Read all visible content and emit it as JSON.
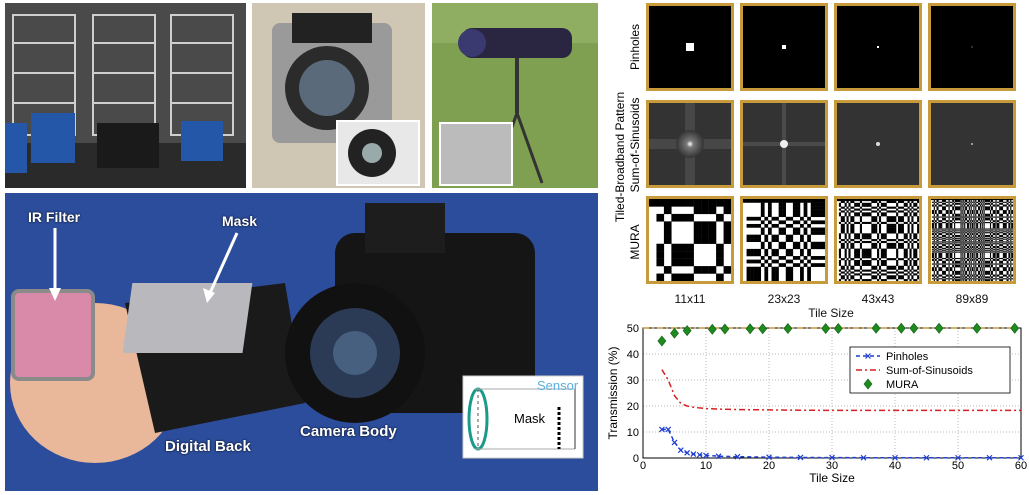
{
  "photos": {
    "annotations": {
      "ir_filter": "IR Filter",
      "mask": "Mask",
      "digital_back": "Digital Back",
      "camera_body": "Camera Body"
    },
    "inset": {
      "sensor": "Sensor",
      "mask": "Mask"
    }
  },
  "pattern_grid": {
    "group_label": "Tiled-Broadband Pattern",
    "rows": [
      "Pinholes",
      "Sum-of-Sinusoids",
      "MURA"
    ],
    "columns": [
      "11x11",
      "23x23",
      "43x43",
      "89x89"
    ],
    "xlabel": "Tile Size",
    "frame_color": "#c79a3c"
  },
  "chart_data": {
    "type": "line",
    "xlabel": "Tile Size",
    "ylabel": "Transmission (%)",
    "xlim": [
      0,
      60
    ],
    "ylim": [
      0,
      50
    ],
    "xticks": [
      0,
      10,
      20,
      30,
      40,
      50,
      60
    ],
    "yticks": [
      0,
      10,
      20,
      30,
      40,
      50
    ],
    "grid": true,
    "legend": "top-right",
    "reference_line": 50,
    "series": [
      {
        "name": "Pinholes",
        "color": "#1f3fd1",
        "style": "dashed-x",
        "x": [
          3,
          4,
          5,
          6,
          7,
          8,
          9,
          10,
          12,
          15,
          20,
          25,
          30,
          35,
          40,
          45,
          50,
          55,
          60
        ],
        "y": [
          11,
          11,
          6,
          3,
          2,
          1.5,
          1.2,
          1,
          0.7,
          0.5,
          0.3,
          0.2,
          0.15,
          0.1,
          0.1,
          0.1,
          0.1,
          0.1,
          0.1
        ]
      },
      {
        "name": "Sum-of-Sinusoids",
        "color": "#d42020",
        "style": "dashdot",
        "x": [
          3,
          4,
          5,
          6,
          7,
          8,
          10,
          12,
          15,
          20,
          25,
          30,
          40,
          50,
          60
        ],
        "y": [
          34,
          30,
          24,
          21,
          20,
          19.5,
          19,
          18.8,
          18.6,
          18.5,
          18.4,
          18.3,
          18.3,
          18.3,
          18.3
        ]
      },
      {
        "name": "MURA",
        "color": "#1f8a1f",
        "style": "diamond",
        "x": [
          3,
          5,
          7,
          11,
          13,
          17,
          19,
          23,
          29,
          31,
          37,
          41,
          43,
          47,
          53,
          59
        ],
        "y": [
          45,
          48,
          49,
          49.5,
          49.6,
          49.7,
          49.7,
          49.8,
          49.8,
          49.8,
          49.9,
          49.9,
          49.9,
          49.9,
          49.9,
          49.9
        ]
      }
    ]
  }
}
